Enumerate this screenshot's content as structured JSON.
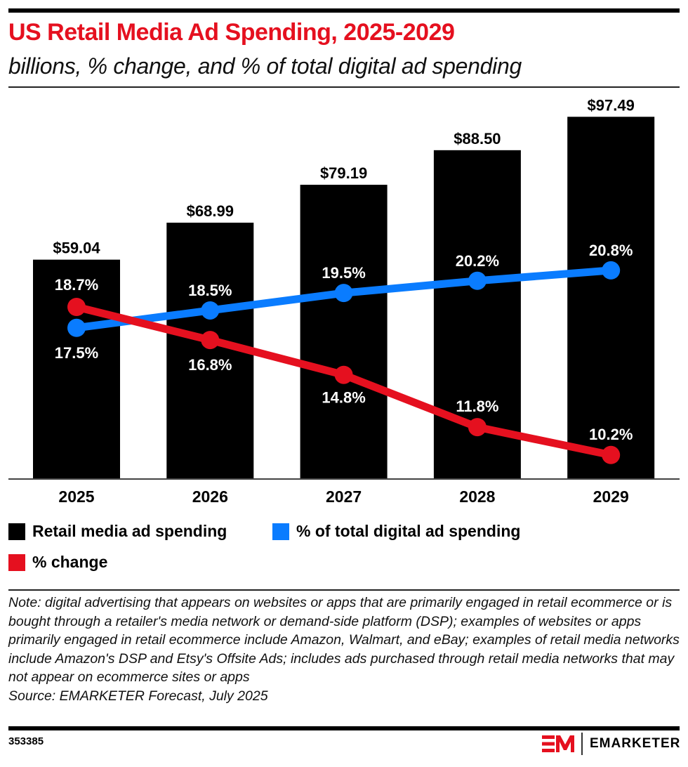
{
  "header": {
    "title": "US Retail Media Ad Spending, 2025-2029",
    "subtitle": "billions, % change, and % of total digital ad spending"
  },
  "colors": {
    "title": "#e5101f",
    "bars": "#000000",
    "share_line": "#0a7cff",
    "change_line": "#e5101f"
  },
  "chart_data": {
    "type": "bar",
    "title": "US Retail Media Ad Spending, 2025-2029",
    "subtitle": "billions, % change, and % of total digital ad spending",
    "categories": [
      "2025",
      "2026",
      "2027",
      "2028",
      "2029"
    ],
    "series": [
      {
        "name": "Retail media ad spending",
        "type": "bar",
        "unit": "billions",
        "values": [
          59.04,
          68.99,
          79.19,
          88.5,
          97.49
        ],
        "labels": [
          "$59.04",
          "$68.99",
          "$79.19",
          "$88.50",
          "$97.49"
        ]
      },
      {
        "name": "% of total digital ad spending",
        "type": "line",
        "unit": "%",
        "values": [
          17.5,
          18.5,
          19.5,
          20.2,
          20.8
        ],
        "labels": [
          "17.5%",
          "18.5%",
          "19.5%",
          "20.2%",
          "20.8%"
        ]
      },
      {
        "name": "% change",
        "type": "line",
        "unit": "%",
        "values": [
          18.7,
          16.8,
          14.8,
          11.8,
          10.2
        ],
        "labels": [
          "18.7%",
          "16.8%",
          "14.8%",
          "11.8%",
          "10.2%"
        ]
      }
    ],
    "xlabel": "",
    "ylabel": "",
    "ylim": [
      0,
      100
    ],
    "grid": false,
    "legend_position": "bottom"
  },
  "legend": [
    {
      "label": "Retail media ad spending",
      "color": "#000000"
    },
    {
      "label": "% of total digital ad spending",
      "color": "#0a7cff"
    },
    {
      "label": "% change",
      "color": "#e5101f"
    }
  ],
  "footer": {
    "note": "Note: digital advertising that appears on websites or apps that are primarily engaged in retail ecommerce or is bought through a retailer's media network or demand-side platform (DSP); examples of websites or apps primarily engaged in retail ecommerce include Amazon, Walmart, and eBay; examples of retail media networks include Amazon's DSP and Etsy's Offsite Ads; includes ads purchased through retail media networks that may not appear on ecommerce sites or apps",
    "source": "Source: EMARKETER Forecast, July 2025",
    "chart_id": "353385",
    "brand": "EMARKETER",
    "logo_mark": "EM"
  }
}
